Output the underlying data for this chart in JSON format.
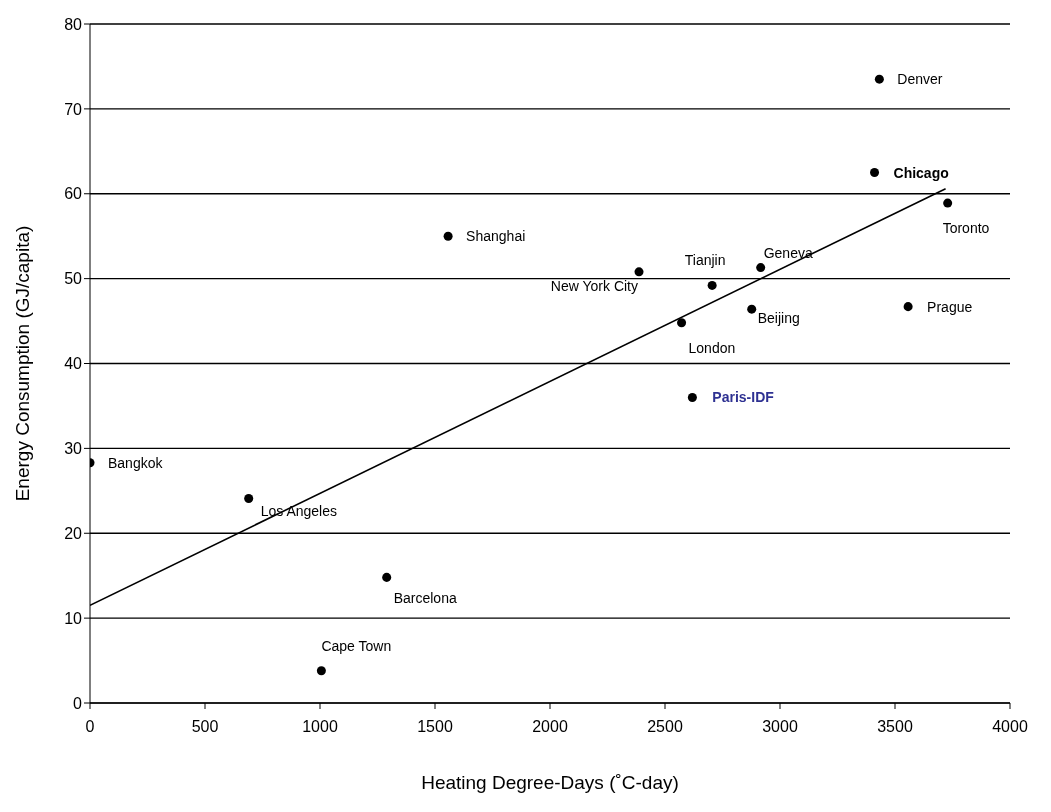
{
  "chart_data": {
    "type": "scatter",
    "xlabel": "Heating Degree-Days (˚C-day)",
    "ylabel": "Energy Consumption (GJ/capita)",
    "xlim": [
      0,
      4000
    ],
    "xticks": [
      0,
      500,
      1000,
      1500,
      2000,
      2500,
      3000,
      3500,
      4000
    ],
    "ylim": [
      0,
      80
    ],
    "yticks": [
      0,
      10,
      20,
      30,
      40,
      50,
      60,
      70,
      80
    ],
    "grid": "y",
    "marker": "circle",
    "legend": false,
    "series": [
      {
        "color": "#000000",
        "x": [
          0,
          690,
          1006,
          1290,
          1557,
          2387,
          2572,
          2619,
          2705,
          2877,
          2916,
          3411,
          3557,
          3729,
          3432
        ],
        "values": [
          28.3,
          24.1,
          3.8,
          14.8,
          55.0,
          50.8,
          44.8,
          36.0,
          49.2,
          46.4,
          51.3,
          62.5,
          46.7,
          58.9,
          73.5
        ]
      },
      {
        "type": "line",
        "color": "#000000",
        "x": [
          0,
          3720
        ],
        "values": [
          11.5,
          60.6
        ],
        "marker": "none",
        "line_style": "solid"
      }
    ],
    "annotations": [
      {
        "text": "Bangkok",
        "x": 0,
        "y": 28.3
      },
      {
        "text": "Los Angeles",
        "x": 690,
        "y": 24.1
      },
      {
        "text": "Cape Town",
        "x": 1006,
        "y": 3.8
      },
      {
        "text": "Barcelona",
        "x": 1290,
        "y": 14.8
      },
      {
        "text": "Shanghai",
        "x": 1557,
        "y": 55.0
      },
      {
        "text": "New York City",
        "x": 2387,
        "y": 50.8
      },
      {
        "text": "London",
        "x": 2572,
        "y": 44.8
      },
      {
        "text": "Paris-IDF",
        "x": 2619,
        "y": 36.0
      },
      {
        "text": "Tianjin",
        "x": 2705,
        "y": 49.2
      },
      {
        "text": "Beijing",
        "x": 2877,
        "y": 46.4
      },
      {
        "text": "Geneva",
        "x": 2916,
        "y": 51.3
      },
      {
        "text": "Chicago",
        "x": 3411,
        "y": 62.5
      },
      {
        "text": "Prague",
        "x": 3557,
        "y": 46.7
      },
      {
        "text": "Toronto",
        "x": 3729,
        "y": 58.9
      },
      {
        "text": "Denver",
        "x": 3432,
        "y": 73.5
      }
    ]
  }
}
